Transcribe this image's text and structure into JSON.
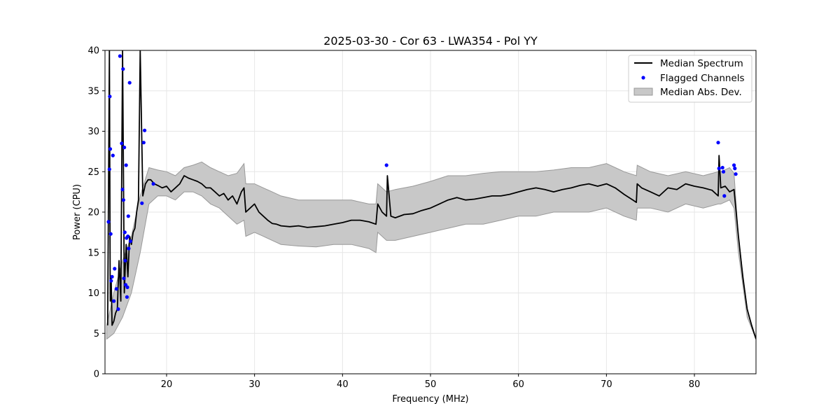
{
  "chart_data": {
    "type": "line",
    "title": "2025-03-30 - Cor 63 - LWA354 - Pol YY",
    "xlabel": "Frequency (MHz)",
    "ylabel": "Power (CPU)",
    "xlim": [
      13,
      87
    ],
    "ylim": [
      0,
      40
    ],
    "xticks": [
      20,
      30,
      40,
      50,
      60,
      70,
      80
    ],
    "yticks": [
      0,
      5,
      10,
      15,
      20,
      25,
      30,
      35,
      40
    ],
    "grid": true,
    "legend_position": "top-right",
    "colors": {
      "median": "#000000",
      "flagged": "#0000ff",
      "mad_fill": "#c8c8c8",
      "mad_edge": "#999999"
    },
    "series": [
      {
        "name": "Median Spectrum",
        "kind": "line",
        "x": [
          13.3,
          13.5,
          13.6,
          13.7,
          13.8,
          14.0,
          14.2,
          14.4,
          14.6,
          14.8,
          15.0,
          15.2,
          15.4,
          15.6,
          15.8,
          16.0,
          16.2,
          16.4,
          16.6,
          16.8,
          17.0,
          17.3,
          17.6,
          17.9,
          18.2,
          18.6,
          19.0,
          19.5,
          20.0,
          20.5,
          21.0,
          21.5,
          22.0,
          22.5,
          23.0,
          23.5,
          24.0,
          24.5,
          25.0,
          25.5,
          26.0,
          26.5,
          27.0,
          27.5,
          28.0,
          28.5,
          28.8,
          29.0,
          29.5,
          30.0,
          30.5,
          31.0,
          31.5,
          32.0,
          32.5,
          33.0,
          34.0,
          35.0,
          36.0,
          37.0,
          38.0,
          39.0,
          40.0,
          41.0,
          42.0,
          43.0,
          43.8,
          44.0,
          44.5,
          45.0,
          45.1,
          45.5,
          46.0,
          47.0,
          48.0,
          49.0,
          50.0,
          51.0,
          52.0,
          53.0,
          54.0,
          55.0,
          56.0,
          57.0,
          58.0,
          59.0,
          60.0,
          61.0,
          62.0,
          63.0,
          64.0,
          65.0,
          66.0,
          67.0,
          68.0,
          69.0,
          70.0,
          71.0,
          72.0,
          73.0,
          73.4,
          73.5,
          74.0,
          75.0,
          76.0,
          77.0,
          78.0,
          79.0,
          80.0,
          81.0,
          82.0,
          82.7,
          82.8,
          83.0,
          83.5,
          84.0,
          84.5,
          85.0,
          85.5,
          86.0,
          86.5,
          87.0
        ],
        "y": [
          6.0,
          40.0,
          9.0,
          12.0,
          6.0,
          6.5,
          7.5,
          8.0,
          14.0,
          9.0,
          40.0,
          10.0,
          16.0,
          12.0,
          17.0,
          16.0,
          17.5,
          18.0,
          20.0,
          21.5,
          40.0,
          22.0,
          23.5,
          24.0,
          24.0,
          23.5,
          23.3,
          23.0,
          23.2,
          22.5,
          23.0,
          23.5,
          24.5,
          24.2,
          24.0,
          23.8,
          23.5,
          23.0,
          23.0,
          22.5,
          22.0,
          22.3,
          21.5,
          22.0,
          21.0,
          22.5,
          23.0,
          20.0,
          20.5,
          21.0,
          20.0,
          19.5,
          19.0,
          18.6,
          18.5,
          18.3,
          18.2,
          18.3,
          18.1,
          18.2,
          18.3,
          18.5,
          18.7,
          19.0,
          19.0,
          18.8,
          18.5,
          21.0,
          20.0,
          19.5,
          24.5,
          19.5,
          19.3,
          19.7,
          19.8,
          20.2,
          20.5,
          21.0,
          21.5,
          21.8,
          21.5,
          21.6,
          21.8,
          22.0,
          22.0,
          22.2,
          22.5,
          22.8,
          23.0,
          22.8,
          22.5,
          22.8,
          23.0,
          23.3,
          23.5,
          23.2,
          23.5,
          23.0,
          22.2,
          21.5,
          21.2,
          23.5,
          23.0,
          22.5,
          22.0,
          23.0,
          22.8,
          23.5,
          23.2,
          23.0,
          22.7,
          22.0,
          27.0,
          23.0,
          23.2,
          22.5,
          22.8,
          17.0,
          12.0,
          8.0,
          6.0,
          4.3
        ]
      },
      {
        "name": "Flagged Channels",
        "kind": "scatter",
        "x": [
          13.4,
          13.5,
          13.55,
          13.6,
          13.65,
          13.7,
          13.8,
          13.9,
          14.0,
          14.1,
          14.3,
          14.5,
          14.7,
          14.9,
          15.0,
          15.05,
          15.1,
          15.15,
          15.2,
          15.25,
          15.3,
          15.35,
          15.4,
          15.45,
          15.5,
          15.55,
          15.6,
          15.65,
          15.7,
          15.8,
          15.9,
          17.2,
          17.4,
          17.5,
          18.5,
          45.0,
          82.7,
          82.8,
          83.2,
          83.3,
          83.4,
          84.5,
          84.6,
          84.7
        ],
        "y": [
          18.8,
          25.3,
          34.3,
          27.8,
          17.3,
          11.5,
          12.0,
          27.0,
          9.0,
          13.0,
          10.5,
          8.0,
          39.3,
          28.5,
          22.8,
          37.7,
          21.5,
          11.8,
          28.0,
          17.5,
          14.0,
          11.0,
          25.8,
          16.8,
          9.5,
          10.7,
          17.0,
          19.5,
          15.5,
          36.0,
          16.4,
          21.1,
          28.6,
          30.1,
          23.5,
          25.8,
          28.6,
          25.4,
          25.5,
          25.0,
          22.0,
          25.8,
          25.4,
          24.7
        ]
      },
      {
        "name": "Median Abs. Dev.",
        "kind": "band",
        "x": [
          13.2,
          14.0,
          15.0,
          16.0,
          17.0,
          18.0,
          19.0,
          20.0,
          21.0,
          22.0,
          23.0,
          24.0,
          25.0,
          26.0,
          27.0,
          28.0,
          28.8,
          29.0,
          30.0,
          31.0,
          32.0,
          33.0,
          35.0,
          37.0,
          39.0,
          41.0,
          43.0,
          43.8,
          44.0,
          45.0,
          46.0,
          48.0,
          50.0,
          52.0,
          54.0,
          56.0,
          58.0,
          60.0,
          62.0,
          64.0,
          66.0,
          68.0,
          70.0,
          72.0,
          73.4,
          73.5,
          75.0,
          77.0,
          79.0,
          81.0,
          82.7,
          83.0,
          84.0,
          84.5,
          85.0,
          86.0,
          87.0
        ],
        "upper": [
          6.0,
          10.0,
          14.0,
          17.0,
          22.0,
          25.5,
          25.2,
          25.0,
          24.5,
          25.5,
          25.8,
          26.2,
          25.5,
          25.0,
          24.5,
          24.8,
          26.0,
          23.5,
          23.5,
          23.0,
          22.5,
          22.0,
          21.5,
          21.5,
          21.5,
          21.5,
          21.0,
          21.0,
          23.5,
          22.5,
          22.8,
          23.2,
          23.8,
          24.5,
          24.5,
          24.8,
          25.0,
          25.0,
          25.0,
          25.2,
          25.5,
          25.5,
          26.0,
          25.0,
          24.5,
          25.8,
          25.0,
          24.5,
          25.0,
          24.5,
          25.0,
          25.0,
          25.5,
          24.8,
          17.0,
          8.0,
          4.3
        ],
        "lower": [
          4.3,
          5.0,
          7.0,
          10.0,
          15.0,
          21.0,
          22.0,
          22.0,
          21.5,
          22.5,
          22.5,
          22.0,
          21.0,
          20.5,
          19.5,
          18.5,
          19.0,
          17.0,
          17.5,
          17.0,
          16.5,
          16.0,
          15.8,
          15.7,
          16.0,
          16.0,
          15.5,
          15.0,
          17.5,
          16.5,
          16.5,
          17.0,
          17.5,
          18.0,
          18.5,
          18.5,
          19.0,
          19.5,
          19.5,
          20.0,
          20.0,
          20.0,
          20.5,
          19.5,
          19.0,
          20.5,
          20.5,
          20.0,
          21.0,
          20.5,
          21.0,
          21.0,
          21.5,
          20.5,
          15.0,
          7.0,
          4.3
        ]
      }
    ]
  }
}
